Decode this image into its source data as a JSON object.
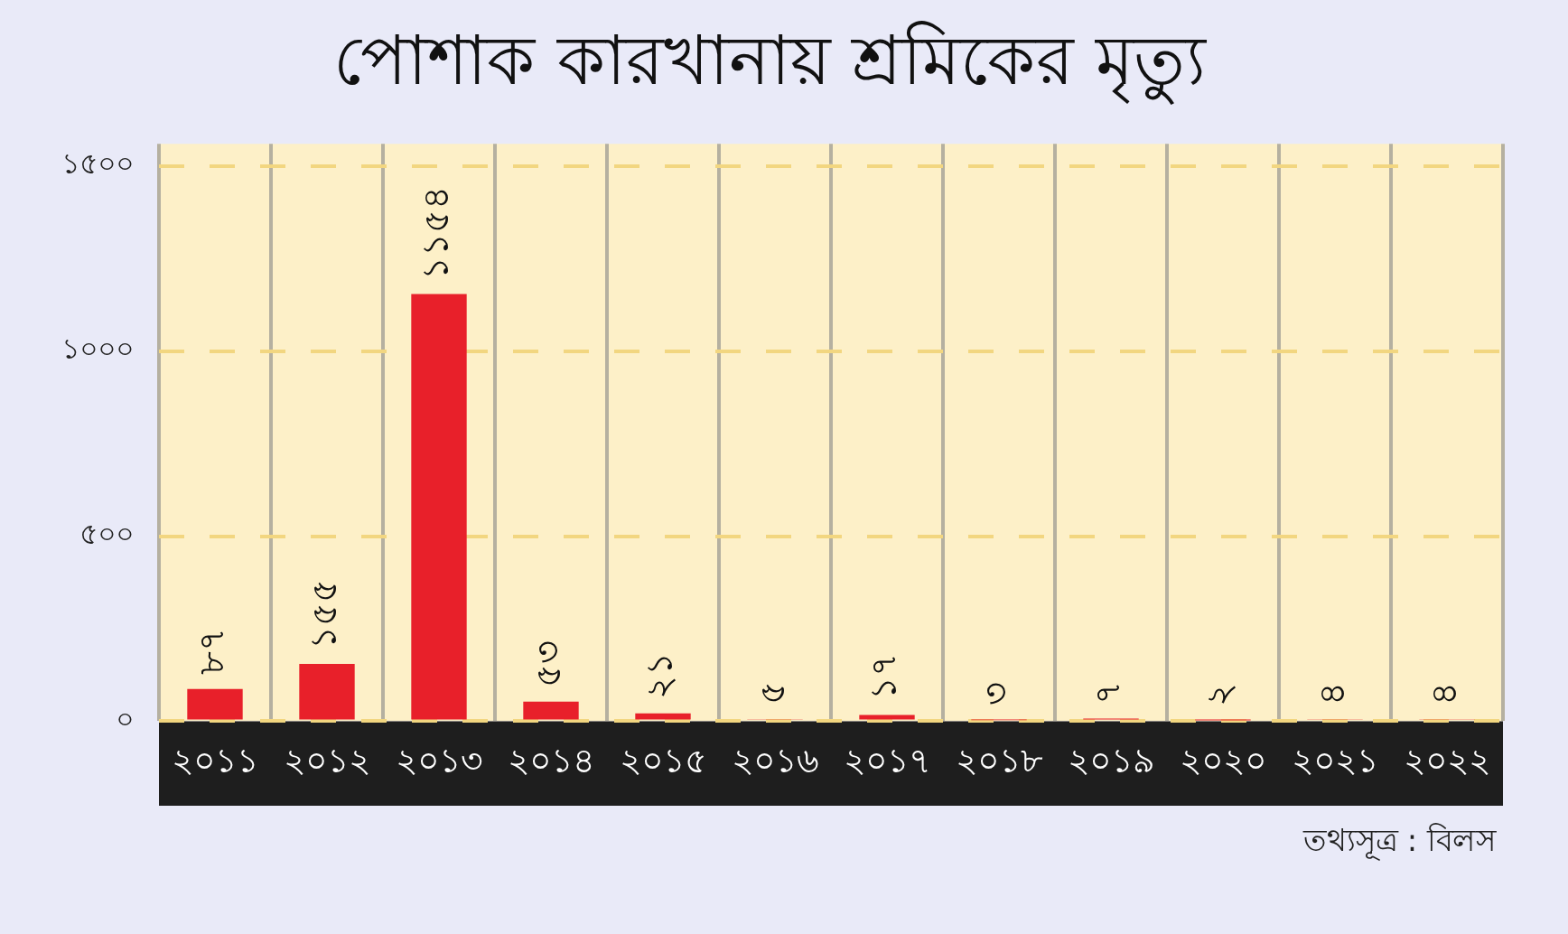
{
  "chart_data": {
    "type": "bar",
    "title": "পোশাক কারখানায় শ্রমিকের মৃত্যু",
    "categories": [
      "২০১১",
      "২০১২",
      "২০১৩",
      "২০১৪",
      "২০১৫",
      "২০১৬",
      "২০১৭",
      "২০১৮",
      "২০১৯",
      "২০২০",
      "২০২১",
      "২০২২"
    ],
    "values": [
      87,
      155,
      1154,
      53,
      21,
      5,
      17,
      3,
      7,
      2,
      4,
      4
    ],
    "value_labels": [
      "৮৭",
      "১৫৫",
      "১১৫৪",
      "৫৩",
      "২১",
      "৫",
      "১৭",
      "৩",
      "৭",
      "২",
      "৪",
      "৪"
    ],
    "color": "#e8202a",
    "ylim": [
      0,
      1560
    ],
    "yticks": [
      {
        "value": 0,
        "label": "০"
      },
      {
        "value": 500,
        "label": "৫০০"
      },
      {
        "value": 1000,
        "label": "১০০০"
      },
      {
        "value": 1500,
        "label": "১৫০০"
      }
    ],
    "grid": true,
    "annotations": [
      "তথ্যসূত্র : বিলস"
    ]
  }
}
